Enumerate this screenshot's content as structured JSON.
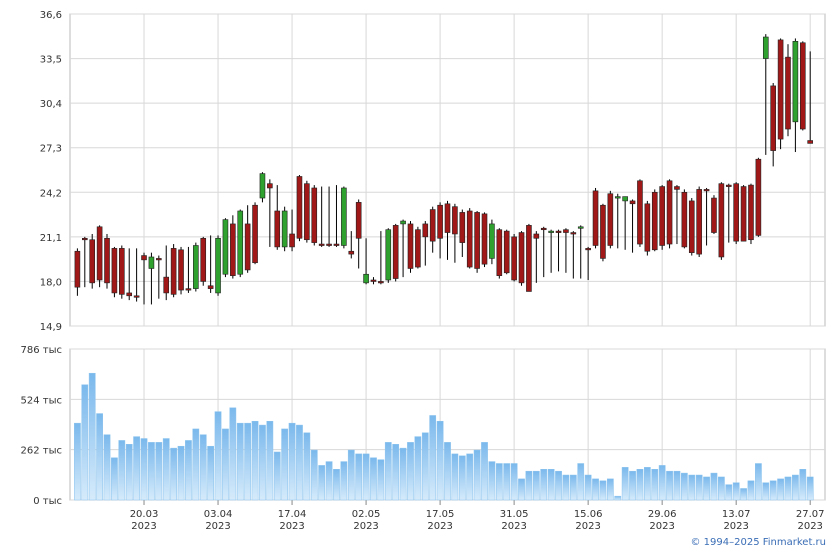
{
  "chart_data": {
    "type": "candlestick",
    "footer": "© 1994–2025 Finmarket.ru",
    "up_color": "#2ea12e",
    "down_color": "#a01818",
    "wick_color": "#000000",
    "volume_color": "#8cc4ee",
    "grid": true,
    "xlim": [
      -1,
      101
    ],
    "xticks": [
      {
        "value": 9,
        "label": "20.03"
      },
      {
        "value": 19,
        "label": "03.04"
      },
      {
        "value": 29,
        "label": "17.04"
      },
      {
        "value": 39,
        "label": "02.05"
      },
      {
        "value": 49,
        "label": "17.05"
      },
      {
        "value": 59,
        "label": "31.05"
      },
      {
        "value": 69,
        "label": "15.06"
      },
      {
        "value": 79,
        "label": "29.06"
      },
      {
        "value": 89,
        "label": "13.07"
      },
      {
        "value": 99,
        "label": "27.07"
      }
    ],
    "xtick_years": [
      "2023",
      "2023",
      "2023",
      "2023",
      "2023",
      "2023",
      "2023",
      "2023",
      "2023",
      "2023"
    ],
    "ylim": [
      14.9,
      36.6
    ],
    "yticks": [
      {
        "value": 14.9,
        "label": "14,9"
      },
      {
        "value": 18.0,
        "label": "18,0"
      },
      {
        "value": 21.1,
        "label": "21,1"
      },
      {
        "value": 24.2,
        "label": "24,2"
      },
      {
        "value": 27.3,
        "label": "27,3"
      },
      {
        "value": 30.4,
        "label": "30,4"
      },
      {
        "value": 33.5,
        "label": "33,5"
      },
      {
        "value": 36.6,
        "label": "36,6"
      }
    ],
    "y2lim": [
      0,
      786
    ],
    "y2ticks": [
      {
        "value": 0,
        "label": "0 тыс"
      },
      {
        "value": 262,
        "label": "262 тыс"
      },
      {
        "value": 524,
        "label": "524 тыс"
      },
      {
        "value": 786,
        "label": "786 тыс"
      }
    ],
    "candles": [
      {
        "open": 20.1,
        "high": 20.3,
        "low": 17.0,
        "close": 17.6
      },
      {
        "open": 21.0,
        "high": 21.1,
        "low": 17.6,
        "close": 20.9
      },
      {
        "open": 20.9,
        "high": 21.3,
        "low": 17.5,
        "close": 17.9
      },
      {
        "open": 21.8,
        "high": 21.9,
        "low": 17.6,
        "close": 18.1
      },
      {
        "open": 21.0,
        "high": 21.3,
        "low": 17.5,
        "close": 17.9
      },
      {
        "open": 20.3,
        "high": 20.4,
        "low": 16.9,
        "close": 17.2
      },
      {
        "open": 20.3,
        "high": 20.5,
        "low": 16.8,
        "close": 17.1
      },
      {
        "open": 17.2,
        "high": 20.3,
        "low": 16.7,
        "close": 17.0
      },
      {
        "open": 17.0,
        "high": 20.3,
        "low": 16.6,
        "close": 16.9
      },
      {
        "open": 19.8,
        "high": 20.0,
        "low": 16.4,
        "close": 19.5
      },
      {
        "open": 18.9,
        "high": 20.0,
        "low": 16.4,
        "close": 19.7
      },
      {
        "open": 19.6,
        "high": 19.8,
        "low": 16.8,
        "close": 19.5
      },
      {
        "open": 18.3,
        "high": 20.5,
        "low": 16.7,
        "close": 17.2
      },
      {
        "open": 20.3,
        "high": 20.6,
        "low": 16.9,
        "close": 17.1
      },
      {
        "open": 20.2,
        "high": 20.4,
        "low": 17.1,
        "close": 17.4
      },
      {
        "open": 17.5,
        "high": 20.4,
        "low": 17.2,
        "close": 17.4
      },
      {
        "open": 17.5,
        "high": 20.7,
        "low": 17.3,
        "close": 20.5
      },
      {
        "open": 21.0,
        "high": 21.1,
        "low": 17.7,
        "close": 18.0
      },
      {
        "open": 17.7,
        "high": 21.2,
        "low": 17.2,
        "close": 17.5
      },
      {
        "open": 17.2,
        "high": 21.2,
        "low": 17.0,
        "close": 21.0
      },
      {
        "open": 18.5,
        "high": 22.4,
        "low": 18.3,
        "close": 22.3
      },
      {
        "open": 22.0,
        "high": 22.6,
        "low": 18.2,
        "close": 18.4
      },
      {
        "open": 18.5,
        "high": 23.0,
        "low": 18.3,
        "close": 22.9
      },
      {
        "open": 22.0,
        "high": 23.3,
        "low": 18.6,
        "close": 18.8
      },
      {
        "open": 23.3,
        "high": 23.5,
        "low": 19.2,
        "close": 19.3
      },
      {
        "open": 23.8,
        "high": 25.6,
        "low": 23.5,
        "close": 25.5
      },
      {
        "open": 24.8,
        "high": 25.1,
        "low": 20.4,
        "close": 24.5
      },
      {
        "open": 22.9,
        "high": 24.7,
        "low": 20.2,
        "close": 20.4
      },
      {
        "open": 20.4,
        "high": 23.2,
        "low": 20.1,
        "close": 22.9
      },
      {
        "open": 21.3,
        "high": 23.0,
        "low": 20.1,
        "close": 20.4
      },
      {
        "open": 25.3,
        "high": 25.4,
        "low": 20.8,
        "close": 21.0
      },
      {
        "open": 24.8,
        "high": 25.0,
        "low": 20.7,
        "close": 20.9
      },
      {
        "open": 24.5,
        "high": 24.7,
        "low": 20.5,
        "close": 20.7
      },
      {
        "open": 20.6,
        "high": 24.6,
        "low": 20.4,
        "close": 20.5
      },
      {
        "open": 20.6,
        "high": 24.6,
        "low": 20.4,
        "close": 20.5
      },
      {
        "open": 20.6,
        "high": 24.7,
        "low": 20.4,
        "close": 20.5
      },
      {
        "open": 20.5,
        "high": 24.6,
        "low": 20.3,
        "close": 24.5
      },
      {
        "open": 20.1,
        "high": 21.5,
        "low": 19.6,
        "close": 19.9
      },
      {
        "open": 23.5,
        "high": 23.7,
        "low": 18.9,
        "close": 21.0
      },
      {
        "open": 17.9,
        "high": 21.0,
        "low": 17.8,
        "close": 18.5
      },
      {
        "open": 18.1,
        "high": 18.3,
        "low": 17.8,
        "close": 18.0
      },
      {
        "open": 18.0,
        "high": 21.5,
        "low": 17.8,
        "close": 17.9
      },
      {
        "open": 18.1,
        "high": 21.7,
        "low": 17.9,
        "close": 21.6
      },
      {
        "open": 21.9,
        "high": 22.0,
        "low": 18.0,
        "close": 18.2
      },
      {
        "open": 22.0,
        "high": 22.3,
        "low": 18.3,
        "close": 22.2
      },
      {
        "open": 22.0,
        "high": 22.2,
        "low": 18.6,
        "close": 18.9
      },
      {
        "open": 21.6,
        "high": 21.8,
        "low": 18.9,
        "close": 19.0
      },
      {
        "open": 22.0,
        "high": 22.2,
        "low": 19.1,
        "close": 21.1
      },
      {
        "open": 23.0,
        "high": 23.2,
        "low": 20.0,
        "close": 20.8
      },
      {
        "open": 23.3,
        "high": 23.5,
        "low": 19.6,
        "close": 21.0
      },
      {
        "open": 23.4,
        "high": 23.6,
        "low": 19.5,
        "close": 21.4
      },
      {
        "open": 23.2,
        "high": 23.4,
        "low": 19.3,
        "close": 21.3
      },
      {
        "open": 22.8,
        "high": 23.0,
        "low": 19.7,
        "close": 20.7
      },
      {
        "open": 22.9,
        "high": 23.1,
        "low": 18.9,
        "close": 19.0
      },
      {
        "open": 22.8,
        "high": 22.9,
        "low": 18.6,
        "close": 18.9
      },
      {
        "open": 22.7,
        "high": 22.8,
        "low": 19.0,
        "close": 19.2
      },
      {
        "open": 19.6,
        "high": 22.3,
        "low": 19.2,
        "close": 22.0
      },
      {
        "open": 21.6,
        "high": 21.7,
        "low": 18.2,
        "close": 18.4
      },
      {
        "open": 21.5,
        "high": 21.6,
        "low": 18.5,
        "close": 18.6
      },
      {
        "open": 21.1,
        "high": 21.3,
        "low": 18.0,
        "close": 18.1
      },
      {
        "open": 21.4,
        "high": 21.5,
        "low": 17.7,
        "close": 17.9
      },
      {
        "open": 21.9,
        "high": 22.0,
        "low": 17.3,
        "close": 17.3
      },
      {
        "open": 21.3,
        "high": 21.5,
        "low": 17.9,
        "close": 21.0
      },
      {
        "open": 21.7,
        "high": 21.8,
        "low": 18.3,
        "close": 21.6
      },
      {
        "open": 21.4,
        "high": 21.6,
        "low": 18.6,
        "close": 21.5
      },
      {
        "open": 21.5,
        "high": 21.6,
        "low": 18.7,
        "close": 21.4
      },
      {
        "open": 21.6,
        "high": 21.7,
        "low": 18.6,
        "close": 21.4
      },
      {
        "open": 21.4,
        "high": 21.5,
        "low": 18.2,
        "close": 21.3
      },
      {
        "open": 21.8,
        "high": 21.9,
        "low": 18.2,
        "close": 21.8
      },
      {
        "open": 20.3,
        "high": 20.4,
        "low": 18.1,
        "close": 20.2
      },
      {
        "open": 24.3,
        "high": 24.5,
        "low": 20.3,
        "close": 20.5
      },
      {
        "open": 23.3,
        "high": 23.4,
        "low": 19.4,
        "close": 19.6
      },
      {
        "open": 24.1,
        "high": 24.3,
        "low": 20.3,
        "close": 20.5
      },
      {
        "open": 23.9,
        "high": 24.1,
        "low": 20.3,
        "close": 23.9
      },
      {
        "open": 23.6,
        "high": 23.9,
        "low": 20.2,
        "close": 23.9
      },
      {
        "open": 23.6,
        "high": 23.7,
        "low": 20.0,
        "close": 23.4
      },
      {
        "open": 25.0,
        "high": 25.1,
        "low": 20.4,
        "close": 20.6
      },
      {
        "open": 23.4,
        "high": 23.6,
        "low": 19.8,
        "close": 20.1
      },
      {
        "open": 24.2,
        "high": 24.4,
        "low": 20.1,
        "close": 20.2
      },
      {
        "open": 24.6,
        "high": 24.7,
        "low": 20.2,
        "close": 20.5
      },
      {
        "open": 25.0,
        "high": 25.1,
        "low": 20.3,
        "close": 20.6
      },
      {
        "open": 24.6,
        "high": 24.7,
        "low": 20.6,
        "close": 24.4
      },
      {
        "open": 24.2,
        "high": 24.4,
        "low": 20.3,
        "close": 20.4
      },
      {
        "open": 23.6,
        "high": 23.8,
        "low": 19.8,
        "close": 20.0
      },
      {
        "open": 24.4,
        "high": 24.6,
        "low": 19.7,
        "close": 19.9
      },
      {
        "open": 24.4,
        "high": 24.5,
        "low": 20.5,
        "close": 24.3
      },
      {
        "open": 23.8,
        "high": 24.0,
        "low": 21.3,
        "close": 21.4
      },
      {
        "open": 24.8,
        "high": 24.9,
        "low": 19.5,
        "close": 19.7
      },
      {
        "open": 24.7,
        "high": 24.8,
        "low": 20.7,
        "close": 24.6
      },
      {
        "open": 24.8,
        "high": 24.9,
        "low": 20.6,
        "close": 20.8
      },
      {
        "open": 24.6,
        "high": 24.7,
        "low": 20.8,
        "close": 20.8
      },
      {
        "open": 24.7,
        "high": 24.8,
        "low": 20.6,
        "close": 20.9
      },
      {
        "open": 26.5,
        "high": 26.6,
        "low": 21.1,
        "close": 21.2
      },
      {
        "open": 33.5,
        "high": 35.2,
        "low": 26.8,
        "close": 35.0
      },
      {
        "open": 31.6,
        "high": 31.8,
        "low": 26.0,
        "close": 27.1
      },
      {
        "open": 34.8,
        "high": 34.9,
        "low": 27.2,
        "close": 27.9
      },
      {
        "open": 33.6,
        "high": 34.5,
        "low": 28.1,
        "close": 28.6
      },
      {
        "open": 29.1,
        "high": 34.9,
        "low": 27.0,
        "close": 34.7
      },
      {
        "open": 34.6,
        "high": 34.7,
        "low": 28.5,
        "close": 28.6
      },
      {
        "open": 27.8,
        "high": 34.0,
        "low": 27.6,
        "close": 27.6
      }
    ],
    "volumes": [
      400,
      600,
      660,
      450,
      340,
      220,
      310,
      290,
      330,
      320,
      300,
      300,
      320,
      270,
      280,
      310,
      370,
      340,
      280,
      460,
      370,
      480,
      400,
      400,
      410,
      390,
      410,
      250,
      370,
      400,
      390,
      350,
      260,
      180,
      200,
      160,
      200,
      260,
      240,
      240,
      220,
      210,
      300,
      290,
      270,
      300,
      330,
      350,
      440,
      410,
      300,
      240,
      230,
      240,
      260,
      300,
      200,
      190,
      190,
      190,
      110,
      150,
      150,
      160,
      160,
      150,
      130,
      130,
      190,
      130,
      110,
      100,
      110,
      20,
      170,
      150,
      160,
      170,
      160,
      180,
      150,
      150,
      140,
      130,
      130,
      120,
      140,
      120,
      80,
      90,
      60,
      100,
      190,
      90,
      100,
      110,
      120,
      130,
      160,
      120
    ]
  }
}
